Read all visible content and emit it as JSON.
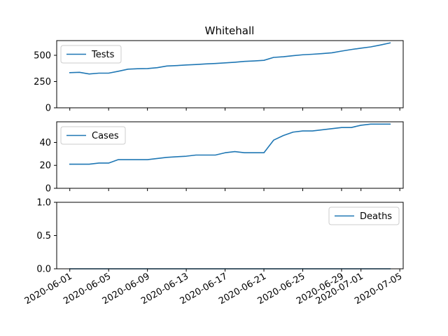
{
  "chart_data": {
    "type": "line",
    "title": "Whitehall",
    "line_color": "#1f77b4",
    "x_tick_labels": [
      "2020-06-01",
      "2020-06-05",
      "2020-06-09",
      "2020-06-13",
      "2020-06-17",
      "2020-06-21",
      "2020-06-25",
      "2020-06-29",
      "2020-07-01",
      "2020-07-05"
    ],
    "panels": [
      {
        "series_name": "Tests",
        "legend_position": "upper-left",
        "ylim": [
          0,
          640
        ],
        "y_ticks": [
          0,
          250,
          500
        ],
        "y_tick_labels": [
          "0",
          "250",
          "500"
        ],
        "points": [
          [
            "2020-06-01",
            335
          ],
          [
            "2020-06-02",
            338
          ],
          [
            "2020-06-03",
            322
          ],
          [
            "2020-06-04",
            330
          ],
          [
            "2020-06-05",
            330
          ],
          [
            "2020-06-06",
            348
          ],
          [
            "2020-06-07",
            368
          ],
          [
            "2020-06-08",
            372
          ],
          [
            "2020-06-09",
            374
          ],
          [
            "2020-06-10",
            382
          ],
          [
            "2020-06-11",
            398
          ],
          [
            "2020-06-12",
            402
          ],
          [
            "2020-06-13",
            408
          ],
          [
            "2020-06-14",
            412
          ],
          [
            "2020-06-15",
            418
          ],
          [
            "2020-06-16",
            422
          ],
          [
            "2020-06-17",
            428
          ],
          [
            "2020-06-18",
            434
          ],
          [
            "2020-06-19",
            442
          ],
          [
            "2020-06-20",
            446
          ],
          [
            "2020-06-21",
            452
          ],
          [
            "2020-06-22",
            480
          ],
          [
            "2020-06-23",
            486
          ],
          [
            "2020-06-24",
            496
          ],
          [
            "2020-06-25",
            505
          ],
          [
            "2020-06-26",
            510
          ],
          [
            "2020-06-27",
            516
          ],
          [
            "2020-06-28",
            524
          ],
          [
            "2020-06-29",
            540
          ],
          [
            "2020-06-30",
            555
          ],
          [
            "2020-07-01",
            568
          ],
          [
            "2020-07-02",
            580
          ],
          [
            "2020-07-03",
            598
          ],
          [
            "2020-07-04",
            618
          ]
        ]
      },
      {
        "series_name": "Cases",
        "legend_position": "upper-left",
        "ylim": [
          0,
          58
        ],
        "y_ticks": [
          0,
          20,
          40
        ],
        "y_tick_labels": [
          "0",
          "20",
          "40"
        ],
        "points": [
          [
            "2020-06-01",
            21
          ],
          [
            "2020-06-02",
            21
          ],
          [
            "2020-06-03",
            21
          ],
          [
            "2020-06-04",
            22
          ],
          [
            "2020-06-05",
            22
          ],
          [
            "2020-06-06",
            25
          ],
          [
            "2020-06-07",
            25
          ],
          [
            "2020-06-08",
            25
          ],
          [
            "2020-06-09",
            25
          ],
          [
            "2020-06-10",
            26
          ],
          [
            "2020-06-11",
            27
          ],
          [
            "2020-06-12",
            27.5
          ],
          [
            "2020-06-13",
            28
          ],
          [
            "2020-06-14",
            29
          ],
          [
            "2020-06-15",
            29
          ],
          [
            "2020-06-16",
            29
          ],
          [
            "2020-06-17",
            31
          ],
          [
            "2020-06-18",
            32
          ],
          [
            "2020-06-19",
            31
          ],
          [
            "2020-06-20",
            31
          ],
          [
            "2020-06-21",
            31
          ],
          [
            "2020-06-22",
            42
          ],
          [
            "2020-06-23",
            46
          ],
          [
            "2020-06-24",
            49
          ],
          [
            "2020-06-25",
            50
          ],
          [
            "2020-06-26",
            50
          ],
          [
            "2020-06-27",
            51
          ],
          [
            "2020-06-28",
            52
          ],
          [
            "2020-06-29",
            53
          ],
          [
            "2020-06-30",
            53
          ],
          [
            "2020-07-01",
            55
          ],
          [
            "2020-07-02",
            56
          ],
          [
            "2020-07-03",
            56
          ],
          [
            "2020-07-04",
            56
          ]
        ]
      },
      {
        "series_name": "Deaths",
        "legend_position": "upper-right",
        "ylim": [
          0,
          1.0
        ],
        "y_ticks": [
          0,
          0.5,
          1.0
        ],
        "y_tick_labels": [
          "0.0",
          "0.5",
          "1.0"
        ],
        "points": [
          [
            "2020-06-01",
            0
          ],
          [
            "2020-06-05",
            0
          ],
          [
            "2020-06-09",
            0
          ],
          [
            "2020-06-13",
            0
          ],
          [
            "2020-06-17",
            0
          ],
          [
            "2020-06-21",
            0
          ],
          [
            "2020-06-25",
            0
          ],
          [
            "2020-06-29",
            0
          ],
          [
            "2020-07-01",
            0
          ],
          [
            "2020-07-04",
            0
          ]
        ]
      }
    ]
  }
}
